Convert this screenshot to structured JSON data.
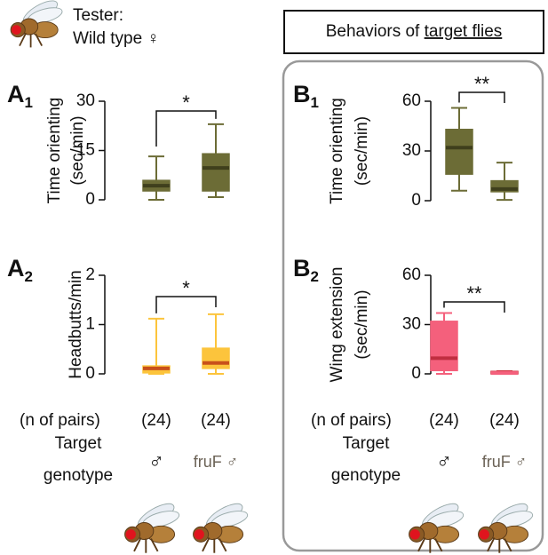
{
  "header": {
    "tester_label": "Tester:",
    "tester_genotype": "Wild type ♀",
    "right_title": "Behaviors of ",
    "right_title_underlined": "target flies"
  },
  "chart_data": [
    {
      "type": "box",
      "panel": {
        "letter": "A",
        "sub": "1"
      },
      "ylabel": [
        "Time orienting",
        "(sec/min)"
      ],
      "ylim": [
        0,
        30
      ],
      "yticks": [
        0,
        15,
        30
      ],
      "significance": "*",
      "box_colors": [
        "#6c6c36",
        "#6c6c36"
      ],
      "median_colors": [
        "#3f3f1c",
        "#3f3f1c"
      ],
      "boxes": [
        {
          "whisker_low": 0,
          "q1": 2.7,
          "median": 4.3,
          "q3": 5.9,
          "whisker_high": 13.2
        },
        {
          "whisker_low": 0.8,
          "q1": 2.7,
          "median": 9.7,
          "q3": 14,
          "whisker_high": 23
        }
      ]
    },
    {
      "type": "box",
      "panel": {
        "letter": "A",
        "sub": "2"
      },
      "ylabel": [
        "Headbutts/min"
      ],
      "ylim": [
        0,
        2
      ],
      "yticks": [
        0,
        1,
        2
      ],
      "significance": "*",
      "box_colors": [
        "#fcc43c",
        "#fcc43c"
      ],
      "median_colors": [
        "#c8501a",
        "#c8501a"
      ],
      "boxes": [
        {
          "whisker_low": 0,
          "q1": 0.02,
          "median": 0.11,
          "q3": 0.16,
          "whisker_high": 1.12
        },
        {
          "whisker_low": 0,
          "q1": 0.11,
          "median": 0.22,
          "q3": 0.52,
          "whisker_high": 1.21
        }
      ]
    },
    {
      "type": "box",
      "panel": {
        "letter": "B",
        "sub": "1"
      },
      "ylabel": [
        "Time orienting",
        "(sec/min)"
      ],
      "ylim": [
        0,
        60
      ],
      "yticks": [
        0,
        30,
        60
      ],
      "significance": "**",
      "box_colors": [
        "#6c6c36",
        "#6c6c36"
      ],
      "median_colors": [
        "#3f3f1c",
        "#3f3f1c"
      ],
      "boxes": [
        {
          "whisker_low": 6,
          "q1": 16,
          "median": 32,
          "q3": 43,
          "whisker_high": 56
        },
        {
          "whisker_low": 0.5,
          "q1": 5.4,
          "median": 7,
          "q3": 12,
          "whisker_high": 23
        }
      ]
    },
    {
      "type": "box",
      "panel": {
        "letter": "B",
        "sub": "2"
      },
      "ylabel": [
        "Wing extension",
        "(sec/min)"
      ],
      "ylim": [
        0,
        60
      ],
      "yticks": [
        0,
        30,
        60
      ],
      "significance": "**",
      "box_colors": [
        "#f4607c",
        "#d23846"
      ],
      "median_colors": [
        "#c02e40",
        "#f4607c"
      ],
      "boxes": [
        {
          "whisker_low": 0,
          "q1": 2,
          "median": 9.5,
          "q3": 32,
          "whisker_high": 37
        },
        {
          "whisker_low": 0,
          "q1": 0,
          "median": 0.5,
          "q3": 1.5,
          "whisker_high": 1.6
        }
      ]
    }
  ],
  "footer": [
    {
      "n_label": "(n of pairs)",
      "n_values": [
        "(24)",
        "(24)"
      ],
      "target_label": [
        "Target",
        "genotype"
      ],
      "genotypes": [
        "♂",
        "fruF ♂"
      ]
    },
    {
      "n_label": "(n of pairs)",
      "n_values": [
        "(24)",
        "(24)"
      ],
      "target_label": [
        "Target",
        "genotype"
      ],
      "genotypes": [
        "♂",
        "fruF ♂"
      ]
    }
  ]
}
